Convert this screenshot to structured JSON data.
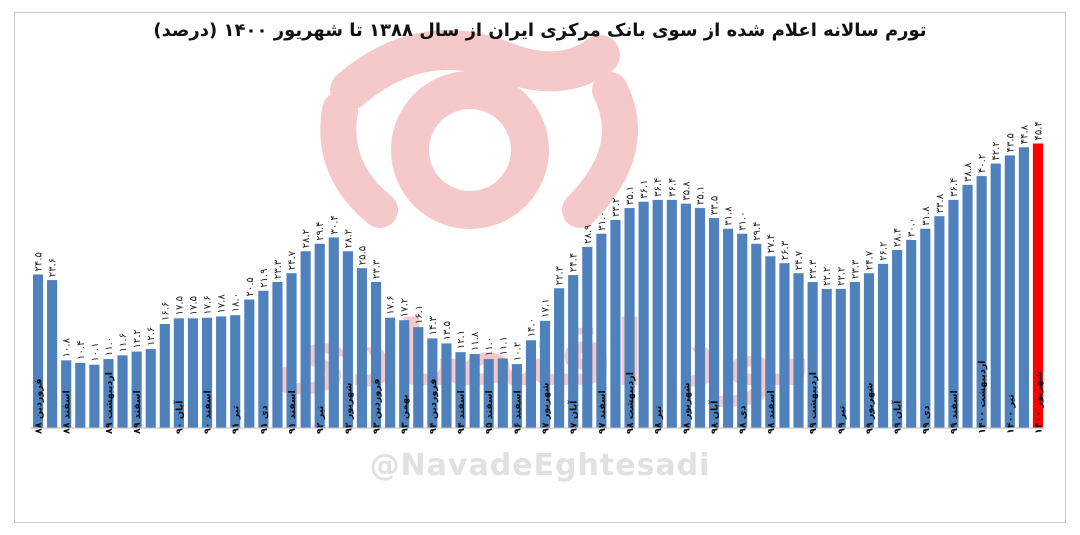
{
  "chart_data": {
    "type": "bar",
    "title": "تورم سالانه اعلام شده از سوی بانک مرکزی ایران از سال ۱۳۸۸ تا شهریور ۱۴۰۰ (درصد)",
    "xlabel": "",
    "ylabel": "",
    "ylim": [
      0,
      60
    ],
    "grid": false,
    "bar_color": "#4f81bd",
    "highlight_color": "#ff0000",
    "x_tick_labels": [
      "فروردین ۸۸",
      "",
      "اسفند ۸۸",
      "",
      "",
      "اردیبهشت ۸۹",
      "",
      "اسفند ۸۹",
      "",
      "",
      "آبان ۹۰",
      "",
      "اسفند ۹۰",
      "",
      "تیر ۹۱",
      "",
      "دی ۹۱",
      "",
      "اسفند ۹۱",
      "",
      "تیر ۹۲",
      "",
      "شهریور ۹۲",
      "",
      "فروردین ۹۳",
      "",
      "بهمن ۹۳",
      "",
      "فروردین ۹۴",
      "",
      "اسفند ۹۴",
      "",
      "اسفند ۹۵",
      "",
      "اسفند ۹۶",
      "",
      "شهریور ۹۷",
      "",
      "آبان ۹۷",
      "",
      "اسفند ۹۷",
      "",
      "اردیبهشت ۹۸",
      "",
      "تیر ۹۸",
      "",
      "شهریور ۹۸",
      "",
      "آبان ۹۸",
      "",
      "دی ۹۸",
      "",
      "اسفند ۹۸",
      "",
      "",
      "اردیبهشت ۹۹",
      "",
      "تیر ۹۹",
      "",
      "شهریور ۹۹",
      "",
      "آبان ۹۹",
      "",
      "دی ۹۹",
      "",
      "اسفند ۹۹",
      "",
      "اردیبهشت ۱۴۰۰",
      "",
      "تیر ۱۴۰۰",
      "",
      "شهریور ۱۴۰۰"
    ],
    "values": [
      24.5,
      23.6,
      10.8,
      10.4,
      10.1,
      11.0,
      11.6,
      12.2,
      12.6,
      16.6,
      17.5,
      17.5,
      17.6,
      17.8,
      18.0,
      20.5,
      21.9,
      23.3,
      24.7,
      28.2,
      29.4,
      30.4,
      28.2,
      25.5,
      23.3,
      17.6,
      17.2,
      16.1,
      14.3,
      13.5,
      12.1,
      11.8,
      11.0,
      11.1,
      10.2,
      14.0,
      17.1,
      22.3,
      24.4,
      28.9,
      31.0,
      33.2,
      35.1,
      36.1,
      36.4,
      36.4,
      35.8,
      35.1,
      33.5,
      31.8,
      31.0,
      29.4,
      27.4,
      26.3,
      24.7,
      23.3,
      22.2,
      22.2,
      23.3,
      24.7,
      26.2,
      28.4,
      30.0,
      31.8,
      33.8,
      36.4,
      38.8,
      40.2,
      42.2,
      43.5,
      44.8,
      45.4
    ],
    "value_labels": [
      "۲۴.۵",
      "۲۳.۶",
      "۱۰.۸",
      "۱۰.۴",
      "۱۰.۱",
      "۱۱.۰",
      "۱۱.۶",
      "۱۲.۲",
      "۱۲.۶",
      "۱۶.۶",
      "۱۷.۵",
      "۱۷.۵",
      "۱۷.۶",
      "۱۷.۸",
      "۱۸.۰",
      "۲۰.۵",
      "۲۱.۹",
      "۲۳.۳",
      "۲۴.۷",
      "۲۸.۲",
      "۲۹.۴",
      "۳۰.۴",
      "۲۸.۲",
      "۲۵.۵",
      "۲۳.۳",
      "۱۷.۶",
      "۱۷.۲",
      "۱۶.۱",
      "۱۴.۳",
      "۱۳.۵",
      "۱۲.۱",
      "۱۱.۸",
      "۱۱.۰",
      "۱۱.۱",
      "۱۰.۲",
      "۱۴.۰",
      "۱۷.۱",
      "۲۲.۳",
      "۲۴.۴",
      "۲۸.۹",
      "۳۱.۰",
      "۳۳.۲",
      "۳۵.۱",
      "۳۶.۱",
      "۳۶.۴",
      "۳۶.۴",
      "۳۵.۸",
      "۳۵.۱",
      "۳۳.۵",
      "۳۱.۸",
      "۳۱.۰",
      "۲۹.۴",
      "۲۷.۴",
      "۲۶.۳",
      "۲۴.۷",
      "۲۳.۳",
      "۲۲.۲",
      "۲۲.۲",
      "۲۳.۳",
      "۲۴.۷",
      "۲۶.۲",
      "۲۸.۴",
      "۳۰.۰",
      "۳۱.۸",
      "۳۳.۸",
      "۳۶.۴",
      "۳۸.۸",
      "۴۰.۲",
      "۴۲.۲",
      "۴۳.۵",
      "۴۴.۸",
      "۴۵.۴"
    ]
  },
  "watermark": {
    "handle": "@NavadeEghtesadi",
    "logo_text": "نود اقتصادی",
    "logo_color": "#f2b8b8"
  }
}
